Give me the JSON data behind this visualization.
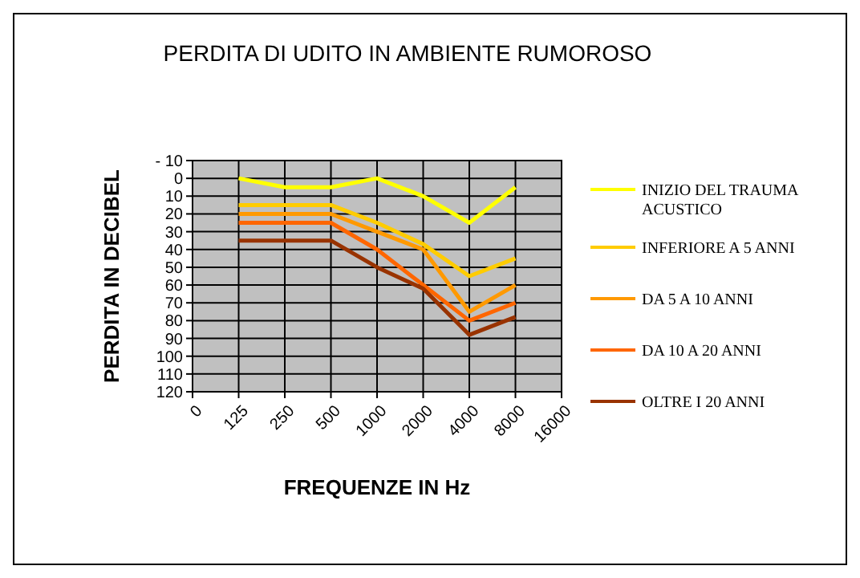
{
  "chart_data": {
    "type": "line",
    "title": "PERDITA DI UDITO IN AMBIENTE RUMOROSO",
    "xlabel": "FREQUENZE IN Hz",
    "ylabel": "PERDITA IN DECIBEL",
    "categories": [
      "0",
      "125",
      "250",
      "500",
      "1000",
      "2000",
      "4000",
      "8000",
      "16000"
    ],
    "series": [
      {
        "name": "INIZIO DEL TRAUMA ACUSTICO",
        "color": "#ffff00",
        "values": [
          null,
          0,
          5,
          5,
          0,
          10,
          25,
          5,
          null
        ]
      },
      {
        "name": "INFERIORE A 5 ANNI",
        "color": "#ffcc00",
        "values": [
          null,
          15,
          15,
          15,
          25,
          37,
          55,
          45,
          null
        ]
      },
      {
        "name": "DA 5 A 10 ANNI",
        "color": "#ff9900",
        "values": [
          null,
          20,
          20,
          20,
          30,
          40,
          75,
          60,
          null
        ]
      },
      {
        "name": "DA 10 A 20 ANNI",
        "color": "#ff6600",
        "values": [
          null,
          25,
          25,
          25,
          40,
          60,
          80,
          70,
          null
        ]
      },
      {
        "name": "OLTRE I 20 ANNI",
        "color": "#993300",
        "values": [
          null,
          35,
          35,
          35,
          50,
          62,
          88,
          78,
          null
        ]
      }
    ],
    "ylim": [
      120,
      -10
    ],
    "yticks": [
      {
        "value": -10,
        "label": "- 10"
      },
      0,
      10,
      20,
      30,
      40,
      50,
      60,
      70,
      80,
      90,
      100,
      110,
      120
    ],
    "grid": true,
    "legend": "right",
    "marker": "none",
    "line_style": "solid"
  }
}
